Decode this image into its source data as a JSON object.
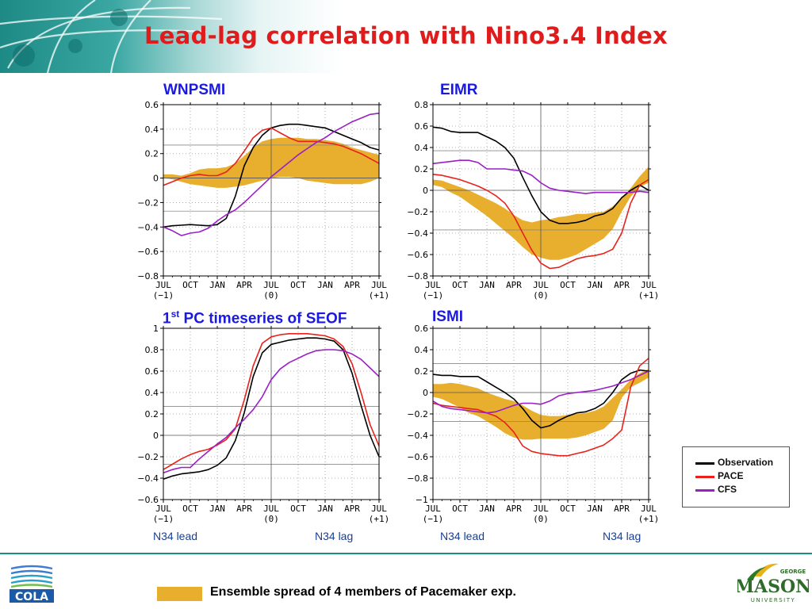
{
  "slide_title": "Lead-lag correlation with Nino3.4 Index",
  "panels": [
    {
      "title": "WNPSMI",
      "title_sup": ""
    },
    {
      "title": "EIMR",
      "title_sup": ""
    },
    {
      "title_pre": "1",
      "title_sup": "st",
      "title": " PC timeseries of SEOF"
    },
    {
      "title": "ISMI",
      "title_sup": ""
    }
  ],
  "lead_lag": {
    "lead": "N34 lead",
    "lag": "N34 lag"
  },
  "legend": [
    {
      "name": "Observation",
      "color": "#000000"
    },
    {
      "name": "PACE",
      "color": "#e8221b"
    },
    {
      "name": "CFS",
      "color": "#9a1fc7"
    }
  ],
  "spread_label": "Ensemble spread of 4 members of Pacemaker exp.",
  "logos": {
    "left": "COLA",
    "right_small": "GEORGE",
    "right_main": "MASON",
    "right_sub": "UNIVERSITY"
  },
  "colors": {
    "title": "#e01b1b",
    "panel_title": "#1a1adf",
    "spread": "#e8ae2e",
    "observation": "#000000",
    "pace": "#e8221b",
    "cfs": "#9a1fc7"
  },
  "chart_data": [
    {
      "type": "line",
      "title": "WNPSMI",
      "x_tick_labels": [
        "JUL",
        "OCT",
        "JAN",
        "APR",
        "JUL",
        "OCT",
        "JAN",
        "APR",
        "JUL"
      ],
      "x_sub_labels": [
        "(-1)",
        "(0)",
        "(+1)"
      ],
      "x": [
        0,
        1,
        2,
        3,
        4,
        5,
        6,
        7,
        8,
        9,
        10,
        11,
        12,
        13,
        14,
        15,
        16,
        17,
        18,
        19,
        20,
        21,
        22,
        23,
        24
      ],
      "ylim": [
        -0.8,
        0.6
      ],
      "yticks": [
        -0.8,
        -0.6,
        -0.4,
        -0.2,
        0,
        0.2,
        0.4,
        0.6
      ],
      "ref_lines": [
        0.27,
        -0.27
      ],
      "series": [
        {
          "name": "Observation",
          "values": [
            -0.4,
            -0.39,
            -0.385,
            -0.38,
            -0.385,
            -0.39,
            -0.38,
            -0.33,
            -0.15,
            0.1,
            0.25,
            0.35,
            0.41,
            0.43,
            0.44,
            0.44,
            0.43,
            0.42,
            0.41,
            0.38,
            0.35,
            0.32,
            0.29,
            0.25,
            0.23
          ]
        },
        {
          "name": "PACE",
          "values": [
            -0.06,
            -0.03,
            0.0,
            0.02,
            0.03,
            0.02,
            0.02,
            0.05,
            0.12,
            0.22,
            0.33,
            0.39,
            0.41,
            0.37,
            0.33,
            0.3,
            0.3,
            0.3,
            0.29,
            0.28,
            0.26,
            0.23,
            0.2,
            0.16,
            0.12
          ]
        },
        {
          "name": "CFS",
          "values": [
            -0.4,
            -0.43,
            -0.47,
            -0.45,
            -0.44,
            -0.41,
            -0.35,
            -0.3,
            -0.26,
            -0.2,
            -0.13,
            -0.06,
            0.01,
            0.07,
            0.13,
            0.19,
            0.24,
            0.29,
            0.33,
            0.38,
            0.42,
            0.46,
            0.49,
            0.52,
            0.53
          ]
        }
      ],
      "spread": {
        "upper": [
          0.03,
          0.03,
          0.02,
          0.04,
          0.07,
          0.08,
          0.08,
          0.09,
          0.12,
          0.18,
          0.25,
          0.3,
          0.32,
          0.33,
          0.33,
          0.33,
          0.32,
          0.32,
          0.31,
          0.3,
          0.28,
          0.25,
          0.23,
          0.21,
          0.19
        ],
        "lower": [
          0.0,
          -0.01,
          -0.03,
          -0.05,
          -0.06,
          -0.07,
          -0.08,
          -0.08,
          -0.07,
          -0.06,
          -0.04,
          -0.02,
          0.0,
          0.01,
          0.01,
          0.0,
          -0.02,
          -0.03,
          -0.04,
          -0.05,
          -0.05,
          -0.05,
          -0.05,
          -0.03,
          0.0
        ]
      }
    },
    {
      "type": "line",
      "title": "EIMR",
      "x_tick_labels": [
        "JUL",
        "OCT",
        "JAN",
        "APR",
        "JUL",
        "OCT",
        "JAN",
        "APR",
        "JUL"
      ],
      "x_sub_labels": [
        "(-1)",
        "(0)",
        "(+1)"
      ],
      "x": [
        0,
        1,
        2,
        3,
        4,
        5,
        6,
        7,
        8,
        9,
        10,
        11,
        12,
        13,
        14,
        15,
        16,
        17,
        18,
        19,
        20,
        21,
        22,
        23,
        24
      ],
      "ylim": [
        -0.8,
        0.8
      ],
      "yticks": [
        -0.8,
        -0.6,
        -0.4,
        -0.2,
        0,
        0.2,
        0.4,
        0.6,
        0.8
      ],
      "ref_lines": [
        0.37,
        -0.37
      ],
      "series": [
        {
          "name": "Observation",
          "values": [
            0.59,
            0.58,
            0.55,
            0.54,
            0.54,
            0.54,
            0.5,
            0.46,
            0.4,
            0.3,
            0.12,
            -0.05,
            -0.2,
            -0.28,
            -0.31,
            -0.31,
            -0.3,
            -0.28,
            -0.24,
            -0.22,
            -0.17,
            -0.07,
            0.0,
            0.05,
            0.0
          ]
        },
        {
          "name": "PACE",
          "values": [
            0.15,
            0.14,
            0.12,
            0.1,
            0.07,
            0.04,
            0.0,
            -0.05,
            -0.12,
            -0.24,
            -0.4,
            -0.56,
            -0.68,
            -0.73,
            -0.72,
            -0.68,
            -0.64,
            -0.62,
            -0.61,
            -0.59,
            -0.55,
            -0.4,
            -0.12,
            0.05,
            0.1
          ]
        },
        {
          "name": "CFS",
          "values": [
            0.25,
            0.26,
            0.27,
            0.28,
            0.28,
            0.26,
            0.2,
            0.2,
            0.2,
            0.19,
            0.18,
            0.14,
            0.07,
            0.02,
            0.0,
            -0.01,
            -0.02,
            -0.03,
            -0.02,
            -0.02,
            -0.02,
            -0.02,
            -0.02,
            -0.01,
            -0.02
          ]
        }
      ],
      "spread": {
        "upper": [
          0.1,
          0.09,
          0.06,
          0.03,
          0.0,
          -0.04,
          -0.08,
          -0.12,
          -0.17,
          -0.23,
          -0.28,
          -0.3,
          -0.28,
          -0.27,
          -0.25,
          -0.24,
          -0.22,
          -0.22,
          -0.21,
          -0.2,
          -0.15,
          -0.08,
          0.02,
          0.13,
          0.22
        ]
      },
      "spread_lower_note": "",
      "spread_lower": [
        0.05,
        0.03,
        -0.02,
        -0.06,
        -0.12,
        -0.18,
        -0.24,
        -0.31,
        -0.38,
        -0.45,
        -0.53,
        -0.6,
        -0.63,
        -0.65,
        -0.65,
        -0.63,
        -0.6,
        -0.55,
        -0.5,
        -0.45,
        -0.36,
        -0.2,
        -0.06,
        0.03,
        0.07
      ]
    },
    {
      "type": "line",
      "title": "1st PC timeseries of SEOF",
      "x_tick_labels": [
        "JUL",
        "OCT",
        "JAN",
        "APR",
        "JUL",
        "OCT",
        "JAN",
        "APR",
        "JUL"
      ],
      "x_sub_labels": [
        "(-1)",
        "(0)",
        "(+1)"
      ],
      "x": [
        0,
        1,
        2,
        3,
        4,
        5,
        6,
        7,
        8,
        9,
        10,
        11,
        12,
        13,
        14,
        15,
        16,
        17,
        18,
        19,
        20,
        21,
        22,
        23,
        24
      ],
      "ylim": [
        -0.6,
        1.0
      ],
      "yticks": [
        -0.6,
        -0.4,
        -0.2,
        0,
        0.2,
        0.4,
        0.6,
        0.8,
        1
      ],
      "ref_lines": [
        0.27,
        -0.27
      ],
      "series": [
        {
          "name": "Observation",
          "values": [
            -0.41,
            -0.38,
            -0.36,
            -0.35,
            -0.34,
            -0.32,
            -0.28,
            -0.21,
            -0.05,
            0.21,
            0.55,
            0.77,
            0.85,
            0.87,
            0.89,
            0.9,
            0.91,
            0.91,
            0.9,
            0.88,
            0.8,
            0.58,
            0.28,
            0.0,
            -0.2
          ]
        },
        {
          "name": "PACE",
          "values": [
            -0.32,
            -0.27,
            -0.22,
            -0.18,
            -0.15,
            -0.13,
            -0.09,
            -0.04,
            0.06,
            0.33,
            0.65,
            0.86,
            0.92,
            0.94,
            0.95,
            0.95,
            0.95,
            0.94,
            0.93,
            0.9,
            0.83,
            0.67,
            0.4,
            0.1,
            -0.1
          ]
        },
        {
          "name": "CFS",
          "values": [
            -0.35,
            -0.32,
            -0.3,
            -0.3,
            -0.22,
            -0.15,
            -0.08,
            -0.02,
            0.07,
            0.15,
            0.24,
            0.36,
            0.52,
            0.62,
            0.68,
            0.72,
            0.76,
            0.79,
            0.8,
            0.8,
            0.79,
            0.76,
            0.71,
            0.63,
            0.55
          ]
        }
      ]
    },
    {
      "type": "line",
      "title": "ISMI",
      "x_tick_labels": [
        "JUL",
        "OCT",
        "JAN",
        "APR",
        "JUL",
        "OCT",
        "JAN",
        "APR",
        "JUL"
      ],
      "x_sub_labels": [
        "(-1)",
        "(0)",
        "(+1)"
      ],
      "x": [
        0,
        1,
        2,
        3,
        4,
        5,
        6,
        7,
        8,
        9,
        10,
        11,
        12,
        13,
        14,
        15,
        16,
        17,
        18,
        19,
        20,
        21,
        22,
        23,
        24
      ],
      "ylim": [
        -1,
        0.6
      ],
      "yticks": [
        -1,
        -0.8,
        -0.6,
        -0.4,
        -0.2,
        0,
        0.2,
        0.4,
        0.6
      ],
      "ref_lines": [
        0.27,
        -0.27
      ],
      "series": [
        {
          "name": "Observation",
          "values": [
            0.17,
            0.16,
            0.16,
            0.15,
            0.15,
            0.15,
            0.1,
            0.05,
            0.0,
            -0.06,
            -0.15,
            -0.26,
            -0.33,
            -0.31,
            -0.26,
            -0.22,
            -0.19,
            -0.18,
            -0.15,
            -0.1,
            0.0,
            0.12,
            0.18,
            0.21,
            0.2
          ]
        },
        {
          "name": "PACE",
          "values": [
            -0.1,
            -0.12,
            -0.13,
            -0.14,
            -0.15,
            -0.16,
            -0.19,
            -0.22,
            -0.28,
            -0.37,
            -0.5,
            -0.55,
            -0.57,
            -0.58,
            -0.59,
            -0.59,
            -0.57,
            -0.55,
            -0.52,
            -0.49,
            -0.43,
            -0.35,
            0.05,
            0.25,
            0.32
          ]
        },
        {
          "name": "CFS",
          "values": [
            -0.08,
            -0.13,
            -0.15,
            -0.16,
            -0.17,
            -0.18,
            -0.19,
            -0.18,
            -0.15,
            -0.12,
            -0.1,
            -0.1,
            -0.11,
            -0.08,
            -0.03,
            -0.01,
            0.0,
            0.01,
            0.02,
            0.04,
            0.06,
            0.09,
            0.12,
            0.16,
            0.2
          ]
        }
      ],
      "spread": {
        "upper": [
          0.08,
          0.08,
          0.09,
          0.08,
          0.06,
          0.04,
          0.0,
          -0.03,
          -0.06,
          -0.08,
          -0.12,
          -0.17,
          -0.21,
          -0.22,
          -0.22,
          -0.21,
          -0.2,
          -0.19,
          -0.17,
          -0.13,
          -0.05,
          0.03,
          0.12,
          0.18,
          0.22
        ],
        "lower": [
          -0.04,
          -0.06,
          -0.1,
          -0.14,
          -0.19,
          -0.22,
          -0.27,
          -0.32,
          -0.38,
          -0.42,
          -0.44,
          -0.44,
          -0.43,
          -0.43,
          -0.43,
          -0.43,
          -0.42,
          -0.4,
          -0.37,
          -0.34,
          -0.26,
          -0.05,
          0.05,
          0.09,
          0.14
        ]
      }
    }
  ]
}
